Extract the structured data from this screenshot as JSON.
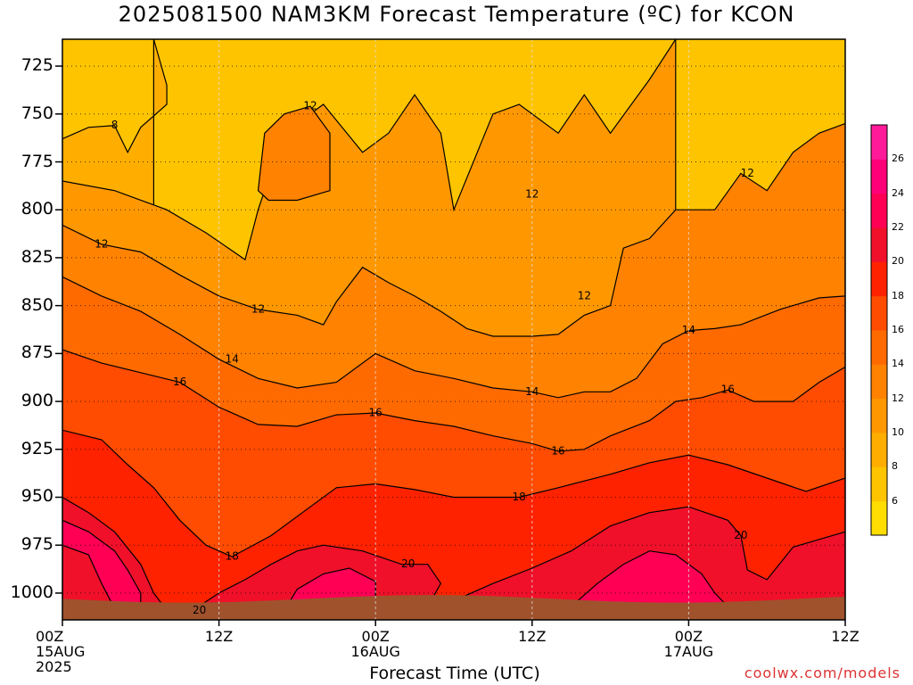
{
  "title": "2025081500 NAM3KM Forecast Temperature (ºC) for KCON",
  "credit": "coolwx.com/models",
  "chart_data": {
    "type": "heatmap",
    "title": "2025081500 NAM3KM Forecast Temperature (ºC) for KCON",
    "xlabel": "Forecast Time (UTC)",
    "ylabel": "",
    "x_ticks": [
      {
        "label": "00Z",
        "sub": [
          "15AUG",
          "2025"
        ],
        "hour": 0
      },
      {
        "label": "12Z",
        "sub": [],
        "hour": 12
      },
      {
        "label": "00Z",
        "sub": [
          "16AUG"
        ],
        "hour": 24
      },
      {
        "label": "12Z",
        "sub": [],
        "hour": 36
      },
      {
        "label": "00Z",
        "sub": [
          "17AUG"
        ],
        "hour": 48
      },
      {
        "label": "12Z",
        "sub": [],
        "hour": 60
      }
    ],
    "xlim": [
      0,
      60
    ],
    "y_ticks": [
      725,
      750,
      775,
      800,
      825,
      850,
      875,
      900,
      925,
      950,
      975,
      1000
    ],
    "ylim": [
      711,
      1014
    ],
    "colorbar": {
      "ticks": [
        6,
        8,
        10,
        12,
        14,
        16,
        18,
        20,
        22,
        24,
        26
      ],
      "range": [
        4,
        28
      ],
      "colors": [
        "#ffdd00",
        "#ffc400",
        "#ffae00",
        "#ff9800",
        "#ff8200",
        "#ff6a00",
        "#ff4c00",
        "#ff2200",
        "#f0102a",
        "#ff0055",
        "#ff0078",
        "#ff1a9a"
      ]
    },
    "ground_color": "#a0522d",
    "contour_labels": [
      {
        "value": 8,
        "hour": 4.0,
        "p": 756
      },
      {
        "value": 12,
        "hour": 3.0,
        "p": 818
      },
      {
        "value": 12,
        "hour": 19.0,
        "p": 746
      },
      {
        "value": 12,
        "hour": 15.0,
        "p": 852
      },
      {
        "value": 12,
        "hour": 36.0,
        "p": 792
      },
      {
        "value": 12,
        "hour": 40.0,
        "p": 845
      },
      {
        "value": 12,
        "hour": 52.5,
        "p": 781
      },
      {
        "value": 14,
        "hour": 13.0,
        "p": 878
      },
      {
        "value": 14,
        "hour": 36.0,
        "p": 895
      },
      {
        "value": 14,
        "hour": 48.0,
        "p": 863
      },
      {
        "value": 16,
        "hour": 9.0,
        "p": 890
      },
      {
        "value": 16,
        "hour": 24.0,
        "p": 906
      },
      {
        "value": 16,
        "hour": 38.0,
        "p": 926
      },
      {
        "value": 16,
        "hour": 51.0,
        "p": 894
      },
      {
        "value": 18,
        "hour": 13.0,
        "p": 981
      },
      {
        "value": 18,
        "hour": 35.0,
        "p": 950
      },
      {
        "value": 20,
        "hour": 26.5,
        "p": 985
      },
      {
        "value": 20,
        "hour": 52.0,
        "p": 970
      },
      {
        "value": 20,
        "hour": 10.5,
        "p": 1009
      }
    ],
    "isotherms": [
      {
        "value": 8,
        "points": [
          [
            0,
            763
          ],
          [
            2,
            757
          ],
          [
            4,
            756
          ],
          [
            5,
            770
          ],
          [
            6,
            757
          ],
          [
            8,
            745
          ],
          [
            8,
            735
          ],
          [
            7,
            711
          ]
        ],
        "closed": false
      },
      {
        "value": 10,
        "points": [
          [
            0,
            785
          ],
          [
            4,
            790
          ],
          [
            8,
            800
          ],
          [
            11,
            812
          ],
          [
            14,
            826
          ],
          [
            15,
            800
          ],
          [
            16,
            780
          ],
          [
            17,
            760
          ],
          [
            20,
            745
          ],
          [
            23,
            770
          ],
          [
            25,
            760
          ],
          [
            27,
            740
          ],
          [
            29,
            760
          ],
          [
            30,
            800
          ],
          [
            33,
            750
          ],
          [
            35,
            745
          ],
          [
            38,
            760
          ],
          [
            40,
            740
          ],
          [
            42,
            760
          ],
          [
            45,
            732
          ],
          [
            47,
            711
          ]
        ],
        "closed": false
      },
      {
        "value": 12,
        "points": [
          [
            0,
            808
          ],
          [
            3,
            818
          ],
          [
            6,
            822
          ],
          [
            9,
            834
          ],
          [
            12,
            845
          ],
          [
            15,
            852
          ],
          [
            18,
            855
          ],
          [
            20,
            860
          ],
          [
            21,
            848
          ],
          [
            23,
            830
          ],
          [
            25,
            838
          ],
          [
            27,
            845
          ],
          [
            29,
            853
          ],
          [
            31,
            862
          ],
          [
            33,
            866
          ],
          [
            36,
            866
          ],
          [
            38,
            865
          ],
          [
            40,
            855
          ],
          [
            42,
            850
          ],
          [
            43,
            820
          ],
          [
            45,
            815
          ],
          [
            47,
            800
          ],
          [
            50,
            800
          ],
          [
            52,
            781
          ],
          [
            54,
            790
          ],
          [
            56,
            770
          ],
          [
            58,
            760
          ],
          [
            60,
            755
          ]
        ],
        "closed": false
      },
      {
        "value": 12,
        "points": [
          [
            15,
            790
          ],
          [
            15.5,
            760
          ],
          [
            17,
            750
          ],
          [
            19,
            746
          ],
          [
            20.5,
            760
          ],
          [
            20.5,
            790
          ],
          [
            18,
            795
          ],
          [
            15.8,
            795
          ]
        ],
        "closed": true
      },
      {
        "value": 14,
        "points": [
          [
            0,
            835
          ],
          [
            3,
            845
          ],
          [
            6,
            853
          ],
          [
            9,
            865
          ],
          [
            12,
            878
          ],
          [
            15,
            888
          ],
          [
            18,
            893
          ],
          [
            21,
            890
          ],
          [
            24,
            875
          ],
          [
            27,
            884
          ],
          [
            30,
            888
          ],
          [
            33,
            893
          ],
          [
            36,
            895
          ],
          [
            38,
            898
          ],
          [
            40,
            895
          ],
          [
            42,
            895
          ],
          [
            44,
            888
          ],
          [
            46,
            870
          ],
          [
            48,
            863
          ],
          [
            50,
            862
          ],
          [
            52,
            860
          ],
          [
            55,
            852
          ],
          [
            58,
            846
          ],
          [
            60,
            845
          ]
        ],
        "closed": false
      },
      {
        "value": 16,
        "points": [
          [
            0,
            873
          ],
          [
            3,
            880
          ],
          [
            6,
            885
          ],
          [
            9,
            890
          ],
          [
            12,
            903
          ],
          [
            15,
            912
          ],
          [
            18,
            913
          ],
          [
            21,
            907
          ],
          [
            24,
            906
          ],
          [
            27,
            910
          ],
          [
            30,
            913
          ],
          [
            33,
            918
          ],
          [
            36,
            922
          ],
          [
            38,
            926
          ],
          [
            40,
            925
          ],
          [
            42,
            918
          ],
          [
            45,
            910
          ],
          [
            47,
            900
          ],
          [
            49,
            898
          ],
          [
            51,
            894
          ],
          [
            53,
            900
          ],
          [
            56,
            900
          ],
          [
            58,
            890
          ],
          [
            60,
            882
          ]
        ],
        "closed": false
      },
      {
        "value": 18,
        "points": [
          [
            0,
            915
          ],
          [
            3,
            920
          ],
          [
            5,
            933
          ],
          [
            7,
            945
          ],
          [
            9,
            962
          ],
          [
            11,
            975
          ],
          [
            13,
            981
          ],
          [
            16,
            970
          ],
          [
            19,
            955
          ],
          [
            21,
            945
          ],
          [
            24,
            943
          ],
          [
            27,
            946
          ],
          [
            30,
            950
          ],
          [
            33,
            950
          ],
          [
            35,
            950
          ],
          [
            38,
            945
          ],
          [
            42,
            938
          ],
          [
            45,
            932
          ],
          [
            48,
            928
          ],
          [
            51,
            933
          ],
          [
            54,
            940
          ],
          [
            57,
            947
          ],
          [
            60,
            940
          ]
        ],
        "closed": false
      },
      {
        "value": 20,
        "points": [
          [
            0,
            950
          ],
          [
            2,
            958
          ],
          [
            4,
            968
          ],
          [
            6,
            985
          ],
          [
            7,
            1000
          ],
          [
            8,
            1009
          ],
          [
            10,
            1009
          ],
          [
            12,
            1000
          ],
          [
            14,
            993
          ],
          [
            16,
            985
          ],
          [
            18,
            978
          ],
          [
            20,
            975
          ],
          [
            23,
            978
          ],
          [
            26,
            985
          ],
          [
            28,
            985
          ],
          [
            29,
            995
          ],
          [
            28,
            1007
          ],
          [
            30,
            1004
          ],
          [
            33,
            995
          ],
          [
            36,
            987
          ],
          [
            39,
            978
          ],
          [
            42,
            965
          ],
          [
            45,
            958
          ],
          [
            48,
            955
          ],
          [
            51,
            962
          ],
          [
            52,
            970
          ],
          [
            52.5,
            988
          ],
          [
            54,
            993
          ],
          [
            56,
            976
          ],
          [
            58,
            972
          ],
          [
            60,
            968
          ]
        ],
        "closed": false
      },
      {
        "value": 22,
        "points": [
          [
            0,
            975
          ],
          [
            2,
            980
          ],
          [
            3,
            995
          ],
          [
            4,
            1008
          ],
          [
            6,
            1008
          ],
          [
            6,
            1000
          ],
          [
            5,
            988
          ],
          [
            4,
            978
          ],
          [
            2,
            968
          ],
          [
            0,
            962
          ]
        ],
        "closed": false
      },
      {
        "value": 22,
        "points": [
          [
            17,
            1009
          ],
          [
            18,
            998
          ],
          [
            20,
            990
          ],
          [
            22,
            987
          ],
          [
            24,
            994
          ],
          [
            24,
            1009
          ]
        ],
        "closed": false
      },
      {
        "value": 22,
        "points": [
          [
            39,
            1007
          ],
          [
            41,
            995
          ],
          [
            43,
            985
          ],
          [
            45,
            978
          ],
          [
            47,
            980
          ],
          [
            49,
            990
          ],
          [
            50,
            1000
          ],
          [
            51,
            1007
          ]
        ],
        "closed": false
      }
    ]
  }
}
